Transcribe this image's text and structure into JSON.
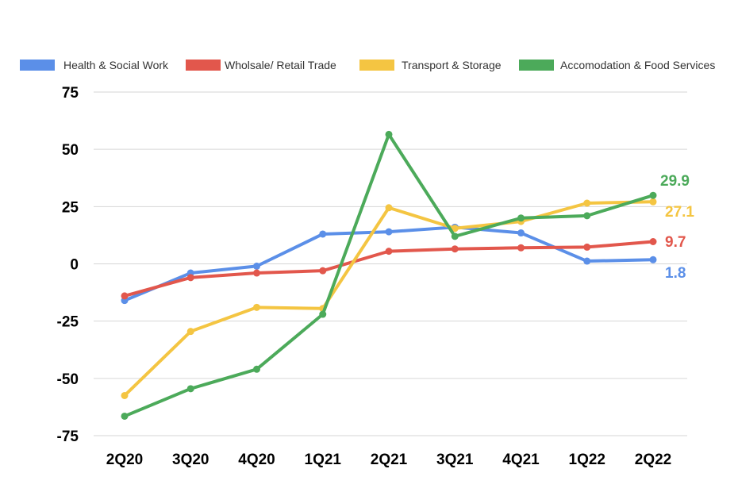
{
  "chart_data": {
    "type": "line",
    "title": "",
    "xlabel": "",
    "ylabel": "",
    "categories": [
      "2Q20",
      "3Q20",
      "4Q20",
      "1Q21",
      "2Q21",
      "3Q21",
      "4Q21",
      "1Q22",
      "2Q22"
    ],
    "ylim": [
      -75,
      75
    ],
    "yticks": [
      75,
      50,
      25,
      0,
      -25,
      -50,
      -75
    ],
    "ytick_labels": [
      "75",
      "50",
      "25",
      "0",
      "-25",
      "-50",
      "-75"
    ],
    "grid": true,
    "legend_position": "top",
    "series": [
      {
        "name": "Health & Social Work",
        "color": "#5b8fe8",
        "values": [
          -16,
          -4,
          -1,
          13,
          14,
          16,
          13.5,
          1.2,
          1.8
        ],
        "end_label": "1.8"
      },
      {
        "name": "Wholsale/ Retail Trade",
        "color": "#e2574c",
        "values": [
          -14,
          -6,
          -4,
          -3,
          5.5,
          6.5,
          7,
          7.3,
          9.7
        ],
        "end_label": "9.7"
      },
      {
        "name": "Transport & Storage",
        "color": "#f4c542",
        "values": [
          -57.5,
          -29.5,
          -19,
          -19.5,
          24.5,
          15.5,
          18.5,
          26.5,
          27.1
        ],
        "end_label": "27.1"
      },
      {
        "name": "Accomodation & Food Services",
        "color": "#4caa5a",
        "values": [
          -66.5,
          -54.5,
          -46,
          -22,
          56.5,
          12,
          20,
          21,
          29.9
        ],
        "end_label": "29.9"
      }
    ]
  }
}
